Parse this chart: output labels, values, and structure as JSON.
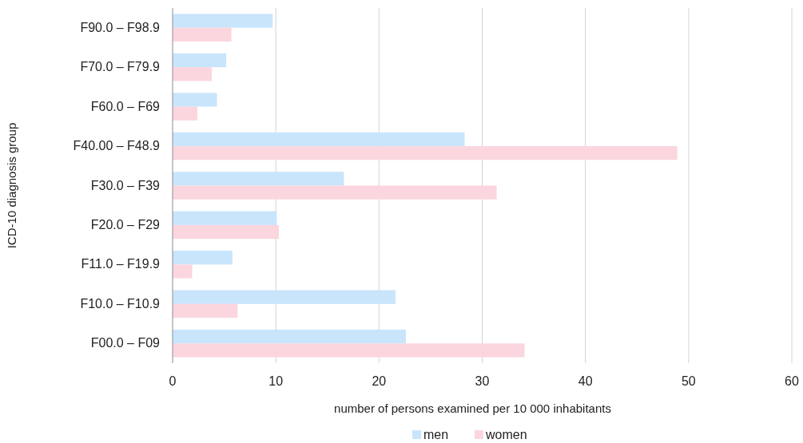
{
  "chart_data": {
    "type": "bar",
    "orientation": "horizontal",
    "ylabel": "ICD-10 diagnosis group",
    "xlabel": "number of persons examined per 10 000 inhabitants",
    "categories": [
      "F90.0 – F98.9",
      "F70.0 – F79.9",
      "F60.0 – F69",
      "F40.00 – F48.9",
      "F30.0 – F39",
      "F20.0 – F29",
      "F11.0 – F19.9",
      "F10.0 – F10.9",
      "F00.0 – F09"
    ],
    "series": [
      {
        "name": "men",
        "color": "#c9e5fc",
        "values": [
          9.7,
          5.2,
          4.3,
          28.3,
          16.6,
          10.1,
          5.8,
          21.6,
          22.6
        ]
      },
      {
        "name": "women",
        "color": "#fbd6de",
        "values": [
          5.7,
          3.8,
          2.4,
          48.9,
          31.4,
          10.3,
          1.9,
          6.3,
          34.1
        ]
      }
    ],
    "xlim": [
      0,
      60
    ],
    "xticks": [
      0,
      10,
      20,
      30,
      40,
      50,
      60
    ],
    "grid": "x",
    "legend": "bottom"
  }
}
